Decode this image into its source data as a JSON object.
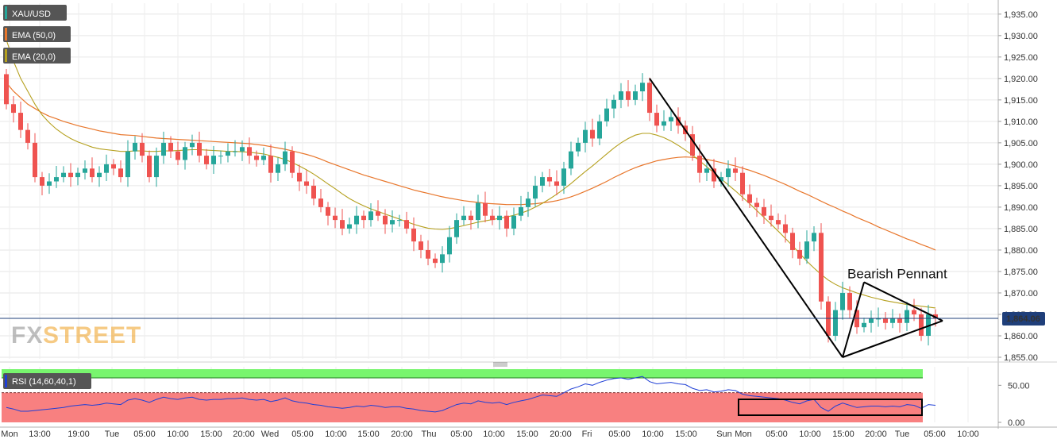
{
  "colors": {
    "up": "#26a69a",
    "down": "#ef5350",
    "ema50": "#e8762b",
    "ema20": "#b5a01e",
    "rsi": "#1f3fd6",
    "rsi_upper_zone": "#78f56e",
    "rsi_lower_zone": "#f88080",
    "last_price_bg": "#1f3f7a",
    "current_line": "#1f3f7a"
  },
  "legend": {
    "symbol": "XAU/USD",
    "ema50": "EMA (50,0)",
    "ema20": "EMA (20,0)",
    "rsi": "RSI (14,60,40,1)"
  },
  "watermark": {
    "fx": "FX",
    "street": "STREET"
  },
  "chart_data": [
    {
      "type": "candlestick",
      "ylim": [
        1855,
        1937
      ],
      "y_ticks": [
        "1,855.00",
        "1,860.00",
        "1,865.00",
        "1,870.00",
        "1,875.00",
        "1,880.00",
        "1,885.00",
        "1,890.00",
        "1,895.00",
        "1,900.00",
        "1,905.00",
        "1,910.00",
        "1,915.00",
        "1,920.00",
        "1,925.00",
        "1,930.00",
        "1,935.00"
      ],
      "x_ticks": [
        "Mon",
        "13:00",
        "19:00",
        "Tue",
        "05:00",
        "10:00",
        "15:00",
        "20:00",
        "Wed",
        "05:00",
        "10:00",
        "15:00",
        "20:00",
        "Thu",
        "05:00",
        "10:00",
        "15:00",
        "20:00",
        "Fri",
        "05:00",
        "10:00",
        "15:00",
        "Sun",
        "Mon",
        "05:00",
        "10:00",
        "15:00",
        "20:00",
        "Tue",
        "05:00",
        "10:00"
      ],
      "last_price": "1,864.06",
      "close": [
        1914,
        1912,
        1908,
        1905,
        1897,
        1895,
        1896,
        1897,
        1898,
        1897,
        1898,
        1899,
        1897,
        1898,
        1900,
        1899,
        1897,
        1903,
        1905,
        1902,
        1897,
        1902,
        1905,
        1903,
        1901,
        1904,
        1905,
        1902,
        1900,
        1902,
        1902,
        1903,
        1903,
        1904,
        1902,
        1901,
        1902,
        1898,
        1900,
        1903,
        1898,
        1896,
        1895,
        1892,
        1890,
        1888,
        1887,
        1885,
        1886,
        1888,
        1887,
        1889,
        1888,
        1886,
        1887,
        1887,
        1885,
        1882,
        1880,
        1878,
        1877,
        1879,
        1883,
        1887,
        1888,
        1887,
        1891,
        1888,
        1887,
        1888,
        1885,
        1888,
        1890,
        1892,
        1895,
        1897,
        1896,
        1895,
        1899,
        1903,
        1905,
        1908,
        1906,
        1910,
        1913,
        1915,
        1917,
        1915,
        1917,
        1919,
        1912,
        1909,
        1910,
        1911,
        1909,
        1907,
        1902,
        1898,
        1899,
        1896,
        1897,
        1899,
        1898,
        1893,
        1891,
        1890,
        1888,
        1887,
        1886,
        1884,
        1880,
        1878,
        1882,
        1884,
        1868,
        1860,
        1866,
        1870,
        1866,
        1862,
        1863,
        1864,
        1864,
        1863,
        1864,
        1863,
        1866,
        1865,
        1860,
        1865,
        1864.06
      ],
      "ema50": [
        1919,
        1917,
        1915.5,
        1914,
        1913,
        1912,
        1911.2,
        1910.6,
        1910,
        1909.5,
        1909,
        1908.6,
        1908.2,
        1907.8,
        1907.5,
        1907.2,
        1906.9,
        1906.8,
        1906.7,
        1906.5,
        1906.3,
        1906.1,
        1906,
        1905.9,
        1905.8,
        1905.7,
        1905.6,
        1905.5,
        1905.4,
        1905.3,
        1905.2,
        1905.1,
        1905,
        1904.9,
        1904.8,
        1904.6,
        1904.4,
        1904.1,
        1903.8,
        1903.5,
        1903.1,
        1902.7,
        1902.3,
        1901.8,
        1901.2,
        1900.5,
        1899.9,
        1899.3,
        1898.7,
        1898.1,
        1897.5,
        1897,
        1896.5,
        1896,
        1895.5,
        1895,
        1894.5,
        1894,
        1893.6,
        1893.2,
        1892.8,
        1892.4,
        1892.1,
        1891.8,
        1891.5,
        1891.3,
        1891.1,
        1890.9,
        1890.8,
        1890.7,
        1890.6,
        1890.6,
        1890.6,
        1890.7,
        1890.8,
        1891,
        1891.2,
        1891.5,
        1891.9,
        1892.4,
        1893,
        1893.7,
        1894.4,
        1895.2,
        1896,
        1896.9,
        1897.7,
        1898.5,
        1899.2,
        1899.8,
        1900.3,
        1900.8,
        1901.1,
        1901.4,
        1901.6,
        1901.7,
        1901.6,
        1901.4,
        1901.1,
        1900.8,
        1900.4,
        1900,
        1899.6,
        1899.1,
        1898.6,
        1898,
        1897.4,
        1896.7,
        1896,
        1895.3,
        1894.5,
        1893.7,
        1893,
        1892.2,
        1891.4,
        1890.6,
        1889.9,
        1889.1,
        1888.4,
        1887.6,
        1886.9,
        1886.2,
        1885.4,
        1884.7,
        1884,
        1883.3,
        1882.6,
        1882,
        1881.3,
        1880.7,
        1880
      ],
      "ema20": [
        1929,
        1924,
        1920,
        1917,
        1914,
        1911.5,
        1909.7,
        1908.2,
        1907,
        1906,
        1905.2,
        1904.6,
        1904,
        1903.6,
        1903.4,
        1903.2,
        1903,
        1903,
        1903.1,
        1903.1,
        1903,
        1903,
        1903.1,
        1903.1,
        1903.2,
        1903.3,
        1903.4,
        1903.4,
        1903.3,
        1903.2,
        1903.1,
        1903,
        1903,
        1902.9,
        1902.8,
        1902.6,
        1902.4,
        1902,
        1901.6,
        1901.1,
        1900.4,
        1899.6,
        1898.7,
        1897.7,
        1896.6,
        1895.4,
        1894.3,
        1893.1,
        1892,
        1891.1,
        1890.3,
        1889.6,
        1889,
        1888.4,
        1887.8,
        1887.2,
        1886.6,
        1886,
        1885.5,
        1885.1,
        1884.9,
        1884.8,
        1885,
        1885.3,
        1885.7,
        1886.1,
        1886.5,
        1886.8,
        1887.1,
        1887.4,
        1887.7,
        1888.1,
        1888.6,
        1889.2,
        1890,
        1890.9,
        1891.9,
        1893,
        1894.2,
        1895.5,
        1896.9,
        1898.3,
        1899.6,
        1901,
        1902.4,
        1903.8,
        1905,
        1906,
        1906.8,
        1907.2,
        1907.2,
        1906.8,
        1906.2,
        1905.4,
        1904.4,
        1903.3,
        1902.1,
        1900.8,
        1899.4,
        1898,
        1896.6,
        1895.2,
        1893.8,
        1892.3,
        1890.8,
        1889.2,
        1887.6,
        1886,
        1884.4,
        1882.7,
        1881,
        1879.2,
        1877.4,
        1875.8,
        1874.3,
        1873,
        1872,
        1871.2,
        1870.6,
        1870,
        1869.5,
        1869,
        1868.6,
        1868.2,
        1867.9,
        1867.6,
        1867.3,
        1867.1,
        1866.9,
        1866.7,
        1866.5
      ],
      "annotations": [
        {
          "text": "Bearish Pennant",
          "x": 121,
          "y": 1874.5
        }
      ],
      "lines": [
        {
          "points": [
            [
              90,
              1920
            ],
            [
              117,
              1855
            ]
          ]
        },
        {
          "points": [
            [
              117,
              1855
            ],
            [
              131,
              1863.5
            ]
          ]
        },
        {
          "points": [
            [
              120,
              1872.5
            ],
            [
              131,
              1863.5
            ]
          ]
        },
        {
          "points": [
            [
              120,
              1872.5
            ],
            [
              117,
              1855
            ]
          ]
        }
      ]
    },
    {
      "type": "line",
      "name": "RSI",
      "ylim": [
        0,
        75
      ],
      "y_ticks": [
        "0.00",
        "50.00"
      ],
      "levels": [
        60,
        40
      ],
      "values": [
        20,
        18,
        15,
        15,
        16,
        17,
        18,
        19,
        20,
        22,
        23,
        24,
        23,
        24,
        26,
        25,
        24,
        30,
        32,
        30,
        27,
        31,
        34,
        32,
        31,
        33,
        34,
        31,
        30,
        31,
        31,
        32,
        32,
        33,
        31,
        30,
        31,
        28,
        30,
        33,
        29,
        27,
        26,
        24,
        23,
        21,
        20,
        19,
        20,
        22,
        21,
        23,
        22,
        20,
        21,
        21,
        19,
        18,
        16,
        15,
        14,
        16,
        20,
        24,
        26,
        25,
        29,
        27,
        26,
        27,
        24,
        27,
        29,
        31,
        34,
        37,
        36,
        35,
        40,
        45,
        48,
        52,
        50,
        54,
        57,
        59,
        60,
        58,
        60,
        62,
        55,
        52,
        53,
        54,
        52,
        51,
        46,
        43,
        44,
        41,
        42,
        44,
        43,
        38,
        36,
        35,
        34,
        33,
        32,
        30,
        27,
        25,
        29,
        31,
        20,
        15,
        22,
        26,
        23,
        20,
        21,
        22,
        22,
        21,
        22,
        21,
        24,
        23,
        19,
        24,
        23
      ]
    }
  ]
}
